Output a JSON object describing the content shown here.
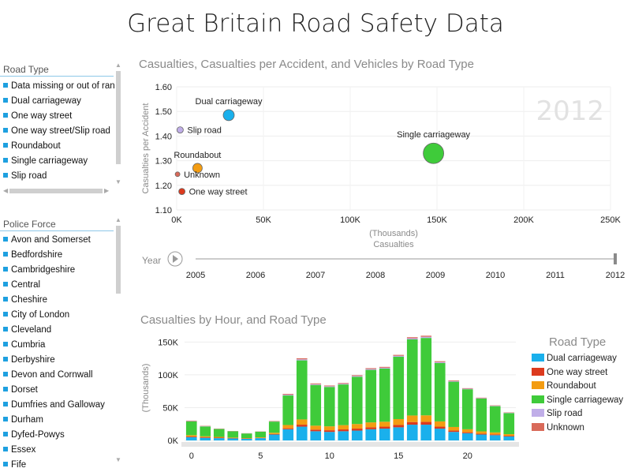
{
  "page_title": "Great Britain Road Safety Data",
  "road_type_slicer": {
    "title": "Road Type",
    "items": [
      "Data missing or out of range",
      "Dual carriageway",
      "One way street",
      "One way street/Slip road",
      "Roundabout",
      "Single carriageway",
      "Slip road"
    ]
  },
  "police_force_slicer": {
    "title": "Police Force",
    "items": [
      "Avon and Somerset",
      "Bedfordshire",
      "Cambridgeshire",
      "Central",
      "Cheshire",
      "City of London",
      "Cleveland",
      "Cumbria",
      "Derbyshire",
      "Devon and Cornwall",
      "Dorset",
      "Dumfries and Galloway",
      "Durham",
      "Dyfed-Powys",
      "Essex",
      "Fife"
    ]
  },
  "play_axis": {
    "label": "Year",
    "years": [
      "2005",
      "2006",
      "2007",
      "2008",
      "2009",
      "2010",
      "2011",
      "2012"
    ],
    "selected": "2012"
  },
  "colors": {
    "dual_carriageway": "#1ab0ec",
    "one_way_street": "#dc3a1e",
    "roundabout": "#f39c12",
    "single_carriageway": "#3fcb3a",
    "slip_road": "#c0aee8",
    "unknown": "#d96a5a",
    "slicer_accent": "#1ea0e0"
  },
  "icons": {
    "play": "play-icon"
  },
  "chart_data": [
    {
      "type": "scatter",
      "title": "Casualties, Casualties per Accident, and Vehicles by Road Type",
      "xlabel": "Casualties",
      "xlabel_unit": "(Thousands)",
      "ylabel": "Casualties per Accident",
      "watermark": "2012",
      "xlim": [
        0,
        250000
      ],
      "ylim": [
        1.1,
        1.6
      ],
      "x_ticks": [
        0,
        50000,
        100000,
        150000,
        200000,
        250000
      ],
      "x_tick_labels": [
        "0K",
        "50K",
        "100K",
        "150K",
        "200K",
        "250K"
      ],
      "y_ticks": [
        1.1,
        1.2,
        1.3,
        1.4,
        1.5,
        1.6
      ],
      "y_tick_labels": [
        "1.10",
        "1.20",
        "1.30",
        "1.40",
        "1.50",
        "1.60"
      ],
      "grid": true,
      "points": [
        {
          "label": "Dual carriageway",
          "x": 30000,
          "y": 1.485,
          "size": 7,
          "color_key": "dual_carriageway",
          "label_pos": "above"
        },
        {
          "label": "Slip road",
          "x": 2000,
          "y": 1.425,
          "size": 4,
          "color_key": "slip_road",
          "label_pos": "right"
        },
        {
          "label": "Single carriageway",
          "x": 148000,
          "y": 1.33,
          "size": 13,
          "color_key": "single_carriageway",
          "label_pos": "above"
        },
        {
          "label": "Roundabout",
          "x": 12000,
          "y": 1.27,
          "size": 6,
          "color_key": "roundabout",
          "label_pos": "above"
        },
        {
          "label": "Unknown",
          "x": 500,
          "y": 1.245,
          "size": 3,
          "color_key": "unknown",
          "label_pos": "right"
        },
        {
          "label": "One way street",
          "x": 3000,
          "y": 1.175,
          "size": 4,
          "color_key": "one_way_street",
          "label_pos": "right"
        }
      ]
    },
    {
      "type": "bar",
      "stacked": true,
      "title": "Casualties by Hour, and Road Type",
      "xlabel": "",
      "ylabel": "(Thousands)",
      "ylim": [
        0,
        160000
      ],
      "y_ticks": [
        0,
        50000,
        100000,
        150000
      ],
      "y_tick_labels": [
        "0K",
        "50K",
        "100K",
        "150K"
      ],
      "x_tick_values": [
        0,
        5,
        10,
        15,
        20
      ],
      "x_tick_labels": [
        "0",
        "5",
        "10",
        "15",
        "20"
      ],
      "categories": [
        0,
        1,
        2,
        3,
        4,
        5,
        6,
        7,
        8,
        9,
        10,
        11,
        12,
        13,
        14,
        15,
        16,
        17,
        18,
        19,
        20,
        21,
        22,
        23
      ],
      "legend_title": "Road Type",
      "legend_position": "right",
      "series": [
        {
          "name": "Dual carriageway",
          "color_key": "dual_carriageway",
          "values": [
            5000,
            4000,
            3500,
            3000,
            2500,
            3500,
            9000,
            17000,
            21000,
            14000,
            13000,
            14000,
            15000,
            17000,
            18000,
            20000,
            24000,
            24000,
            18000,
            13000,
            11000,
            9000,
            8000,
            6000
          ]
        },
        {
          "name": "One way street",
          "color_key": "one_way_street",
          "values": [
            1000,
            800,
            700,
            500,
            400,
            400,
            700,
            1500,
            3000,
            2500,
            2500,
            2800,
            3000,
            3000,
            3000,
            3500,
            4000,
            4200,
            3000,
            2000,
            1500,
            1300,
            1200,
            1100
          ]
        },
        {
          "name": "Roundabout",
          "color_key": "roundabout",
          "values": [
            2000,
            1500,
            1200,
            900,
            700,
            900,
            2000,
            5000,
            8000,
            6000,
            6000,
            6500,
            7000,
            7500,
            7500,
            9000,
            10000,
            10000,
            8000,
            5500,
            4500,
            3500,
            3000,
            2500
          ]
        },
        {
          "name": "Single carriageway",
          "color_key": "single_carriageway",
          "values": [
            21000,
            15000,
            12000,
            9500,
            7000,
            8500,
            17000,
            45000,
            90000,
            62000,
            60000,
            62000,
            72000,
            80000,
            81000,
            95000,
            116000,
            118000,
            89000,
            69000,
            61000,
            50000,
            40000,
            32000
          ]
        },
        {
          "name": "Slip road",
          "color_key": "slip_road",
          "values": [
            500,
            400,
            300,
            200,
            150,
            200,
            400,
            1200,
            1600,
            1200,
            1100,
            1100,
            1200,
            1300,
            1300,
            1500,
            1700,
            1800,
            1400,
            1000,
            800,
            700,
            600,
            500
          ]
        },
        {
          "name": "Unknown",
          "color_key": "unknown",
          "values": [
            700,
            500,
            400,
            300,
            250,
            300,
            600,
            1200,
            1600,
            1200,
            1100,
            1100,
            1200,
            1300,
            1300,
            1400,
            1600,
            1600,
            1300,
            1000,
            800,
            700,
            600,
            500
          ]
        }
      ]
    }
  ]
}
